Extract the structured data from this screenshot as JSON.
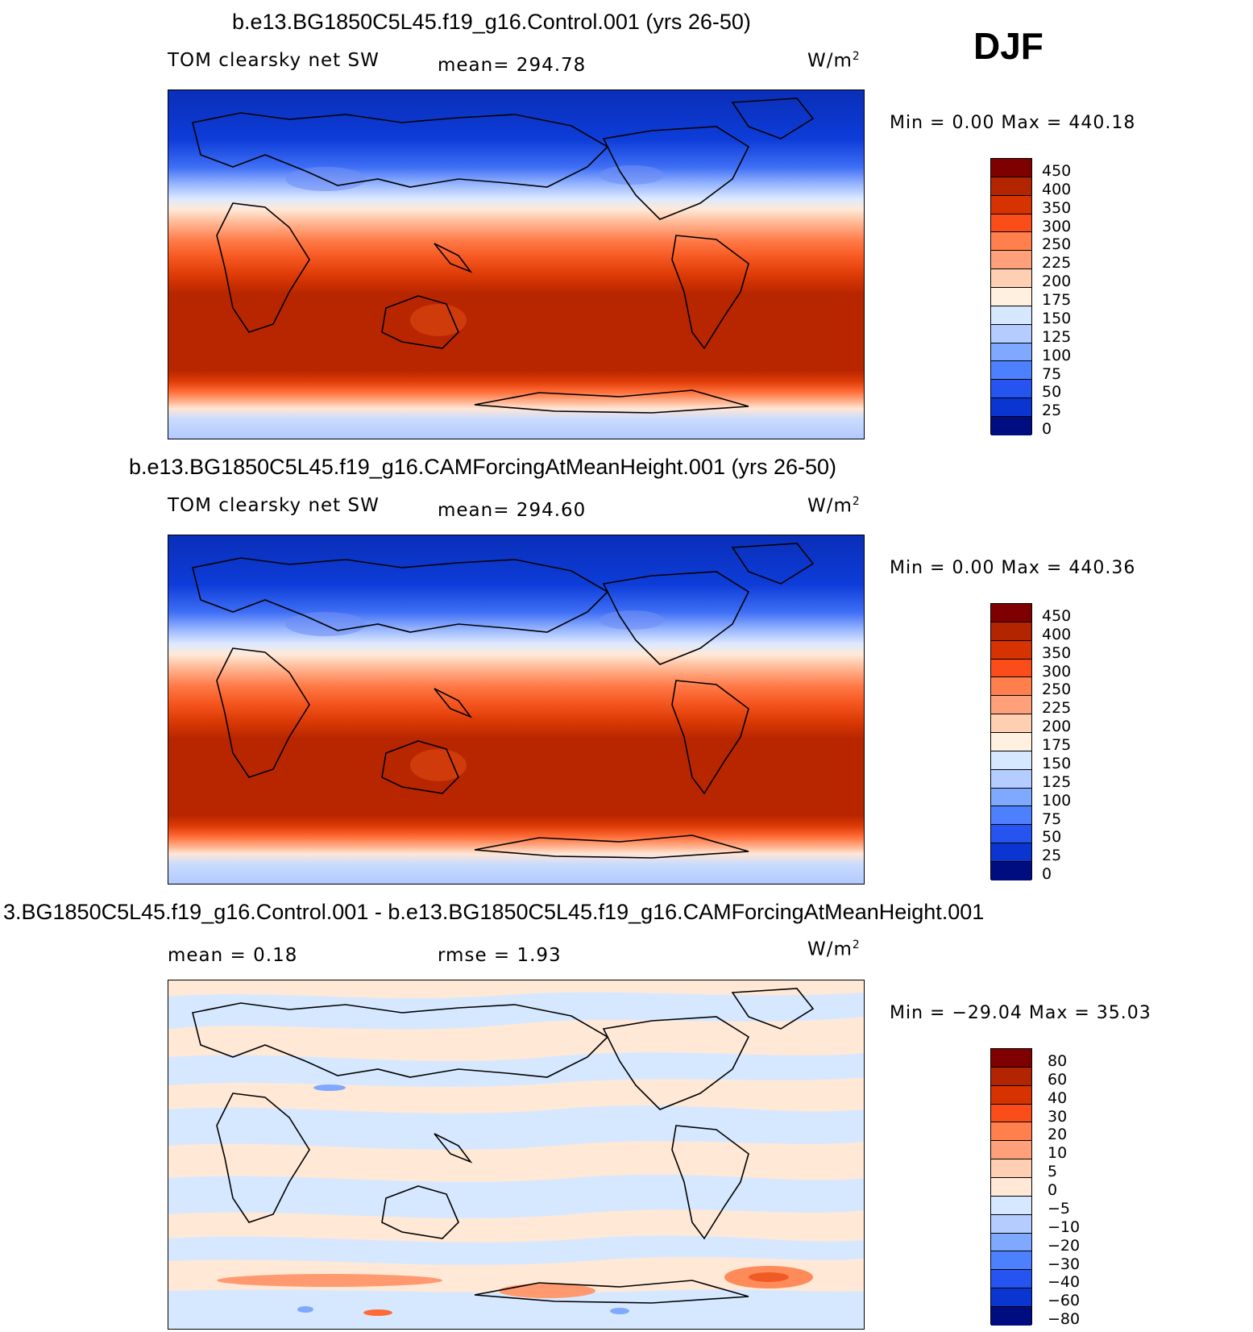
{
  "season": "DJF",
  "panels": [
    {
      "title": "b.e13.BG1850C5L45.f19_g16.Control.001 (yrs 26-50)",
      "variable": "TOM clearsky net SW",
      "mean_text": "mean= 294.78",
      "units": "W/m",
      "units_sup": "2",
      "minmax_text": "Min =    0.00 Max = 440.18",
      "colorbar_labels": [
        "450",
        "400",
        "350",
        "300",
        "250",
        "225",
        "200",
        "175",
        "150",
        "125",
        "100",
        "75",
        "50",
        "25",
        "0"
      ],
      "colorbar_colors": [
        "#7f0000",
        "#b32400",
        "#d63300",
        "#fa4d1a",
        "#ff7f4d",
        "#ffa07a",
        "#ffcfb4",
        "#fff0e0",
        "#d6e8ff",
        "#b4ccff",
        "#7fa8ff",
        "#4d80ff",
        "#2554f0",
        "#0a35d0",
        "#000d80"
      ]
    },
    {
      "title": "b.e13.BG1850C5L45.f19_g16.CAMForcingAtMeanHeight.001 (yrs 26-50)",
      "variable": "TOM clearsky net SW",
      "mean_text": "mean= 294.60",
      "units": "W/m",
      "units_sup": "2",
      "minmax_text": "Min =    0.00 Max = 440.36",
      "colorbar_labels": [
        "450",
        "400",
        "350",
        "300",
        "250",
        "225",
        "200",
        "175",
        "150",
        "125",
        "100",
        "75",
        "50",
        "25",
        "0"
      ],
      "colorbar_colors": [
        "#7f0000",
        "#b32400",
        "#d63300",
        "#fa4d1a",
        "#ff7f4d",
        "#ffa07a",
        "#ffcfb4",
        "#fff0e0",
        "#d6e8ff",
        "#b4ccff",
        "#7fa8ff",
        "#4d80ff",
        "#2554f0",
        "#0a35d0",
        "#000d80"
      ]
    },
    {
      "title": "3.BG1850C5L45.f19_g16.Control.001 - b.e13.BG1850C5L45.f19_g16.CAMForcingAtMeanHeight.001",
      "mean_text": "mean =    0.18",
      "rmse_text": "rmse =    1.93",
      "units": "W/m",
      "units_sup": "2",
      "minmax_text": "Min = −29.04 Max =   35.03",
      "colorbar_labels": [
        "80",
        "60",
        "40",
        "30",
        "20",
        "10",
        "5",
        "0",
        "−5",
        "−10",
        "−20",
        "−30",
        "−40",
        "−60",
        "−80"
      ],
      "colorbar_colors": [
        "#7f0000",
        "#b32400",
        "#d63300",
        "#fa4d1a",
        "#ff7f4d",
        "#ffa07a",
        "#ffcfb4",
        "#ffe8d6",
        "#d6e8ff",
        "#b4ccff",
        "#7fa8ff",
        "#4d80ff",
        "#2554f0",
        "#0a35d0",
        "#000d80"
      ]
    }
  ]
}
